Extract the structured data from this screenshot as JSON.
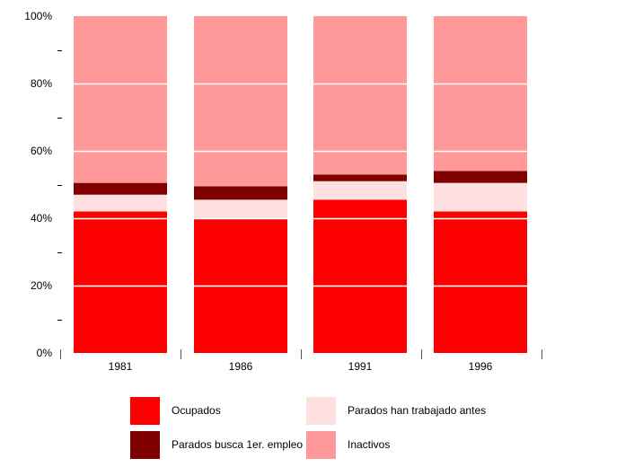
{
  "chart_data": {
    "type": "bar",
    "stacked": true,
    "percent": true,
    "categories": [
      "1981",
      "1986",
      "1991",
      "1996"
    ],
    "series": [
      {
        "name": "Ocupados",
        "color": "#ff0000",
        "values": [
          42,
          40,
          45.5,
          42
        ]
      },
      {
        "name": "Parados han trabajado antes",
        "color": "#ffe0e0",
        "values": [
          5,
          5.5,
          5.5,
          8.5
        ]
      },
      {
        "name": "Parados busca 1er. empleo",
        "color": "#800000",
        "values": [
          3.5,
          4,
          2,
          3.5
        ]
      },
      {
        "name": "Inactivos",
        "color": "#ff9999",
        "values": [
          49.5,
          50.5,
          47,
          46
        ]
      }
    ],
    "y_ticks": [
      "0%",
      "20%",
      "40%",
      "60%",
      "80%",
      "100%"
    ],
    "ylim": [
      0,
      100
    ],
    "grid": true,
    "legend_position": "bottom"
  }
}
